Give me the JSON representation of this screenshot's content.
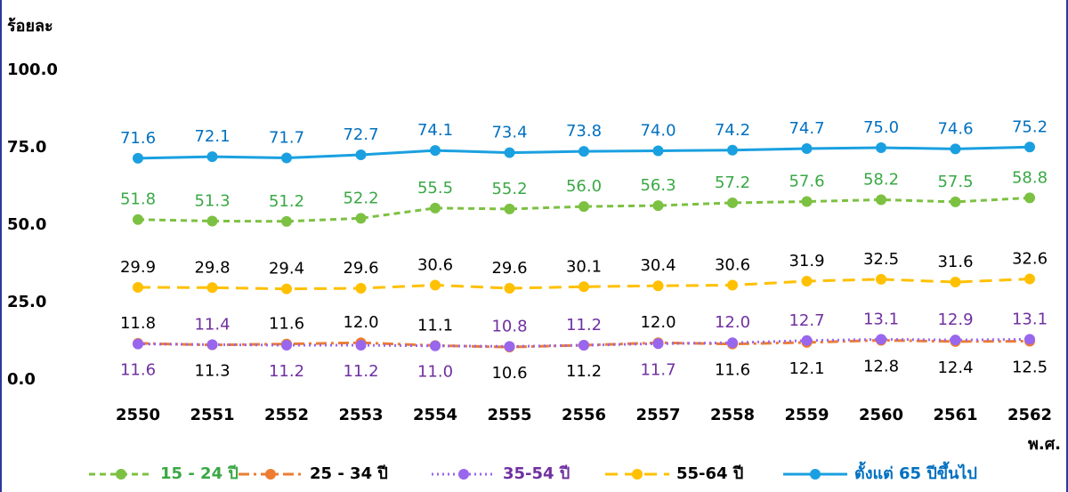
{
  "chart_data": {
    "type": "line",
    "y_label": "ร้อยละ",
    "x_label": "พ.ศ.",
    "categories": [
      "2550",
      "2551",
      "2552",
      "2553",
      "2554",
      "2555",
      "2556",
      "2557",
      "2558",
      "2559",
      "2560",
      "2561",
      "2562"
    ],
    "ylim": [
      0,
      100
    ],
    "yticks": [
      {
        "value": 0,
        "label": "0.0"
      },
      {
        "value": 25,
        "label": "25.0"
      },
      {
        "value": 50,
        "label": "50.0"
      },
      {
        "value": 75,
        "label": "75.0"
      },
      {
        "value": 100,
        "label": "100.0"
      }
    ],
    "grid": false,
    "legend": "bottom",
    "series": [
      {
        "name": "15 - 24 ปี",
        "color": "#7cc142",
        "label_color": "#3aa845",
        "line_style": "dashed",
        "values": [
          51.8,
          51.3,
          51.2,
          52.2,
          55.5,
          55.2,
          56.0,
          56.3,
          57.2,
          57.6,
          58.2,
          57.5,
          58.8
        ],
        "value_labels": [
          "51.8",
          "51.3",
          "51.2",
          "52.2",
          "55.5",
          "55.2",
          "56.0",
          "56.3",
          "57.2",
          "57.6",
          "58.2",
          "57.5",
          "58.8"
        ]
      },
      {
        "name": "25 - 34 ปี",
        "color": "#ed7d31",
        "label_color": "#000000",
        "line_style": "dashdot",
        "values": [
          11.8,
          11.3,
          11.6,
          12.0,
          11.1,
          10.6,
          11.2,
          12.0,
          11.6,
          12.1,
          12.8,
          12.4,
          12.5
        ],
        "value_labels": [
          "11.8",
          "11.3",
          "11.6",
          "12.0",
          "11.1",
          "10.6",
          "11.2",
          "12.0",
          "11.6",
          "12.1",
          "12.8",
          "12.4",
          "12.5"
        ]
      },
      {
        "name": "35-54 ปี",
        "color": "#9966ee",
        "label_color": "#7030a0",
        "line_style": "dotted",
        "values": [
          11.6,
          11.4,
          11.2,
          11.2,
          11.0,
          10.8,
          11.2,
          11.7,
          12.0,
          12.7,
          13.1,
          12.9,
          13.1
        ],
        "value_labels": [
          "11.6",
          "11.4",
          "11.2",
          "11.2",
          "11.0",
          "10.8",
          "11.2",
          "11.7",
          "12.0",
          "12.7",
          "13.1",
          "12.9",
          "13.1"
        ]
      },
      {
        "name": "55-64 ปี",
        "color": "#ffc000",
        "label_color": "#000000",
        "line_style": "longdash",
        "values": [
          29.9,
          29.8,
          29.4,
          29.6,
          30.6,
          29.6,
          30.1,
          30.4,
          30.6,
          31.9,
          32.5,
          31.6,
          32.6
        ],
        "value_labels": [
          "29.9",
          "29.8",
          "29.4",
          "29.6",
          "30.6",
          "29.6",
          "30.1",
          "30.4",
          "30.6",
          "31.9",
          "32.5",
          "31.6",
          "32.6"
        ]
      },
      {
        "name": "ตั้งแต่ 65 ปีขึ้นไป",
        "color": "#1aa0e0",
        "label_color": "#0070c0",
        "line_style": "solid",
        "values": [
          71.6,
          72.1,
          71.7,
          72.7,
          74.1,
          73.4,
          73.8,
          74.0,
          74.2,
          74.7,
          75.0,
          74.6,
          75.2
        ],
        "value_labels": [
          "71.6",
          "72.1",
          "71.7",
          "72.7",
          "74.1",
          "73.4",
          "73.8",
          "74.0",
          "74.2",
          "74.7",
          "75.0",
          "74.6",
          "75.2"
        ]
      }
    ]
  }
}
